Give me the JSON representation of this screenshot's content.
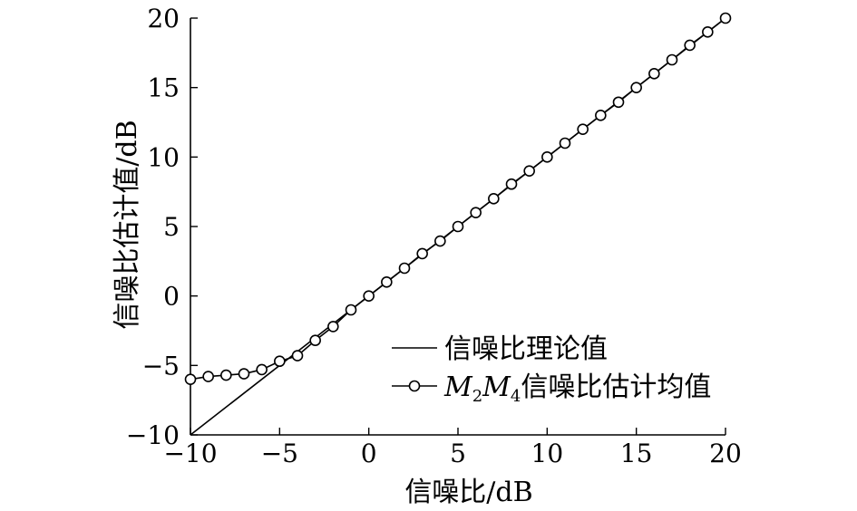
{
  "chart_data": {
    "type": "line",
    "title": "",
    "xlabel": "信噪比/dB",
    "ylabel": "信噪比估计值/dB",
    "xlim": [
      -10,
      20
    ],
    "ylim": [
      -10,
      20
    ],
    "xticks": [
      -10,
      -5,
      0,
      5,
      10,
      15,
      20
    ],
    "yticks": [
      -10,
      -5,
      0,
      5,
      10,
      15,
      20
    ],
    "xtick_labels": [
      "−10",
      "−5",
      "0",
      "5",
      "10",
      "15",
      "20"
    ],
    "ytick_labels": [
      "−10",
      "−5",
      "0",
      "5",
      "10",
      "15",
      "20"
    ],
    "grid": false,
    "legend_position": "lower-right",
    "series": [
      {
        "name": "信噪比理论值",
        "style": "solid-line",
        "color": "#000000",
        "x": [
          -10,
          20
        ],
        "y": [
          -10,
          20
        ]
      },
      {
        "name": "M2M4信噪比估计均值",
        "style": "line-with-circle-markers",
        "color": "#000000",
        "x": [
          -10,
          -9,
          -8,
          -7,
          -6,
          -5,
          -4,
          -3,
          -2,
          -1,
          0,
          1,
          2,
          3,
          4,
          5,
          6,
          7,
          8,
          9,
          10,
          11,
          12,
          13,
          14,
          15,
          16,
          17,
          18,
          19,
          20
        ],
        "y": [
          -6.0,
          -5.8,
          -5.7,
          -5.6,
          -5.3,
          -4.7,
          -4.3,
          -3.2,
          -2.2,
          -1.0,
          0.0,
          1.0,
          2.0,
          3.05,
          3.95,
          5.0,
          6.0,
          7.0,
          8.05,
          9.0,
          10.0,
          11.0,
          12.0,
          13.0,
          13.95,
          15.0,
          16.0,
          17.0,
          18.05,
          19.0,
          20.0
        ]
      }
    ],
    "legend": {
      "entries": [
        {
          "label": "信噪比理论值"
        },
        {
          "label_main": "M",
          "label_sub1": "2",
          "label_mid": "M",
          "label_sub2": "4",
          "label_tail": "信噪比估计均值"
        }
      ]
    }
  }
}
